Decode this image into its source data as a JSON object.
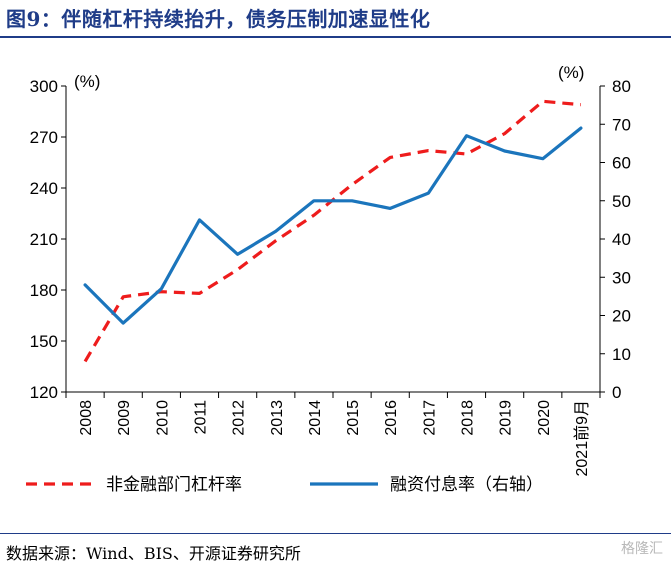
{
  "title": "图9：伴随杠杆持续抬升，债务压制加速显性化",
  "source": "数据来源：Wind、BIS、开源证券研究所",
  "watermark": "格隆汇",
  "colors": {
    "title": "#1f3c88",
    "leverage": "#ee1c1c",
    "debt_service": "#1b75bc"
  },
  "chart_data": {
    "type": "line",
    "categories": [
      "2008",
      "2009",
      "2010",
      "2011",
      "2012",
      "2013",
      "2014",
      "2015",
      "2016",
      "2017",
      "2018",
      "2019",
      "2020",
      "2021前9月"
    ],
    "left_unit": "(%)",
    "right_unit": "(%)",
    "ylim_left": [
      120,
      300
    ],
    "yticks_left": [
      120,
      150,
      180,
      210,
      240,
      270,
      300
    ],
    "ylim_right": [
      0,
      80
    ],
    "yticks_right": [
      0,
      10,
      20,
      30,
      40,
      50,
      60,
      70,
      80
    ],
    "series": [
      {
        "name": "非金融部门杠杆率",
        "axis": "left",
        "style": "dashed",
        "values": [
          138,
          176,
          179,
          178,
          192,
          209,
          224,
          242,
          258,
          262,
          260,
          272,
          291,
          289
        ]
      },
      {
        "name": "融资付息率（右轴）",
        "axis": "right",
        "style": "solid",
        "values": [
          28,
          18,
          27,
          45,
          36,
          42,
          50,
          50,
          48,
          52,
          67,
          63,
          61,
          69
        ]
      }
    ],
    "legend_position": "bottom",
    "grid": false
  }
}
